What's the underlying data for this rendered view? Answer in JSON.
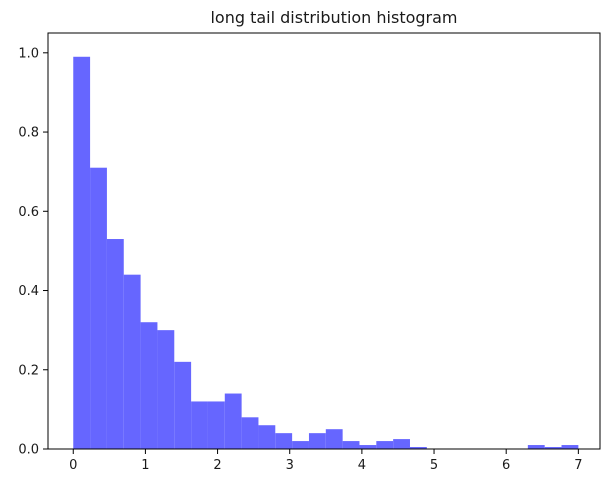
{
  "chart_data": {
    "type": "bar",
    "title": "long tail distribution histogram",
    "xlabel": "",
    "ylabel": "",
    "xlim": [
      -0.35,
      7.3
    ],
    "ylim": [
      0,
      1.05
    ],
    "xticks": [
      0,
      1,
      2,
      3,
      4,
      5,
      6,
      7
    ],
    "yticks": [
      0.0,
      0.2,
      0.4,
      0.6,
      0.8,
      1.0
    ],
    "xtick_labels": [
      "0",
      "1",
      "2",
      "3",
      "4",
      "5",
      "6",
      "7"
    ],
    "ytick_labels": [
      "0.0",
      "0.2",
      "0.4",
      "0.6",
      "0.8",
      "1.0"
    ],
    "grid": false,
    "bar_color": "#6666ff",
    "bin_width": 0.2333,
    "bins_left": [
      0.0,
      0.2333,
      0.4667,
      0.7,
      0.9333,
      1.1667,
      1.4,
      1.6333,
      1.8667,
      2.1,
      2.3333,
      2.5667,
      2.8,
      3.0333,
      3.2667,
      3.5,
      3.7333,
      3.9667,
      4.2,
      4.4333,
      4.6667,
      4.9,
      5.1333,
      5.3667,
      5.6,
      5.8333,
      6.0667,
      6.3,
      6.5333,
      6.7667
    ],
    "values": [
      0.99,
      0.71,
      0.53,
      0.44,
      0.32,
      0.3,
      0.22,
      0.12,
      0.12,
      0.14,
      0.08,
      0.06,
      0.04,
      0.02,
      0.04,
      0.05,
      0.02,
      0.01,
      0.02,
      0.025,
      0.005,
      0.0,
      0.0,
      0.0,
      0.0,
      0.0,
      0.0,
      0.01,
      0.005,
      0.01
    ]
  }
}
